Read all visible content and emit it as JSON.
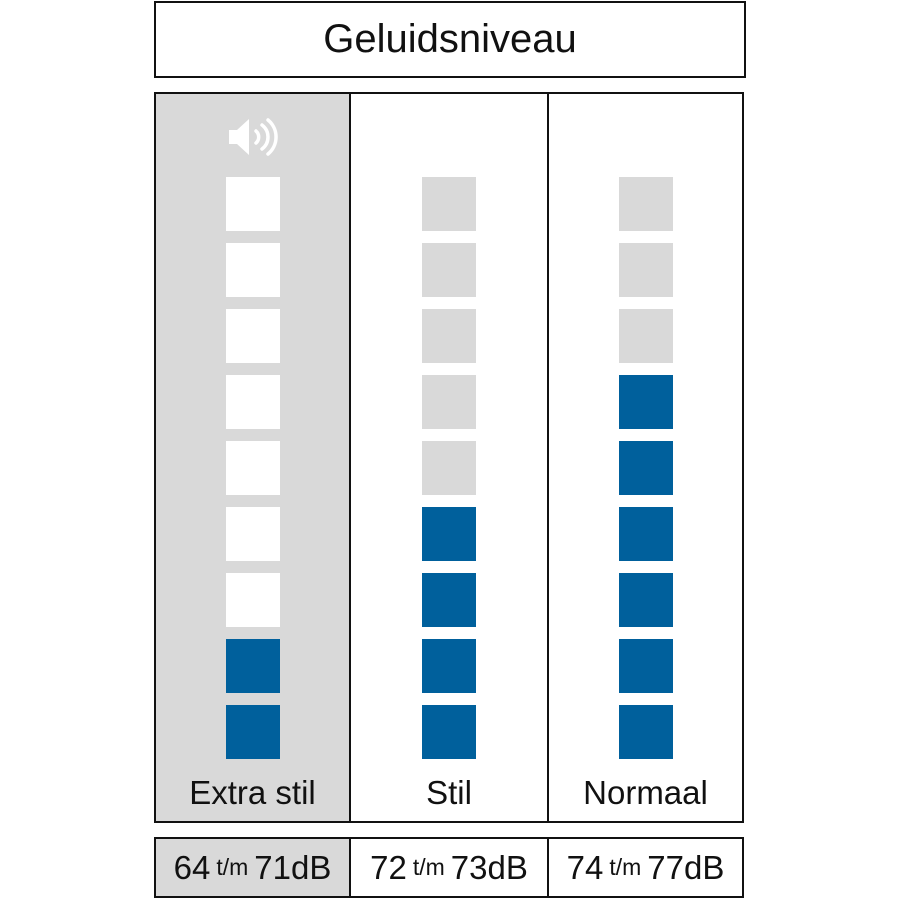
{
  "title": "Geluidsniveau",
  "colors": {
    "filled": "#00609c",
    "empty_in_selected": "#ffffff",
    "empty": "#d9d9d9",
    "selected_background": "#d9d9d9"
  },
  "total_segments": 9,
  "selected_index": 0,
  "levels": [
    {
      "label": "Extra stil",
      "filled_segments": 2,
      "range_from": "64",
      "range_sep": "t/m",
      "range_to": "71dB",
      "icon": "speaker-volume-icon"
    },
    {
      "label": "Stil",
      "filled_segments": 4,
      "range_from": "72",
      "range_sep": "t/m",
      "range_to": "73dB"
    },
    {
      "label": "Normaal",
      "filled_segments": 6,
      "range_from": "74",
      "range_sep": "t/m",
      "range_to": "77dB"
    }
  ]
}
